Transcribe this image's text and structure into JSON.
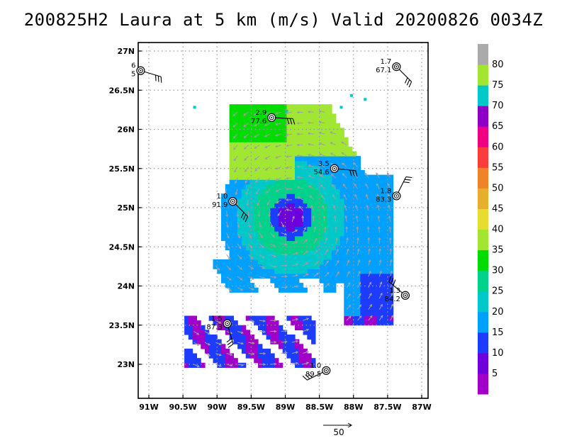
{
  "title": "200825H2 Laura at 5 km (m/s) Valid 20200826 0034Z",
  "chart_data": {
    "type": "heatmap",
    "title": "200825H2 Laura at 5 km (m/s) Valid 20200826 0034Z",
    "xlabel": "",
    "ylabel": "",
    "xlim": [
      -91.2,
      -86.9
    ],
    "ylim": [
      22.6,
      27.15
    ],
    "x_ticks": [
      -91,
      -90.5,
      -90,
      -89.5,
      -89,
      -88.5,
      -88,
      -87.5,
      -87
    ],
    "x_tick_labels": [
      "91W",
      "90.5W",
      "90W",
      "89.5W",
      "89W",
      "88.5W",
      "88W",
      "87.5W",
      "87W"
    ],
    "y_ticks": [
      23,
      23.5,
      24,
      24.5,
      25,
      25.5,
      26,
      26.5,
      27
    ],
    "y_tick_labels": [
      "23N",
      "23.5N",
      "24N",
      "24.5N",
      "25N",
      "25.5N",
      "26N",
      "26.5N",
      "27N"
    ],
    "grid": true,
    "colorbar": {
      "labels": [
        "5",
        "10",
        "15",
        "20",
        "25",
        "30",
        "35",
        "40",
        "45",
        "50",
        "55",
        "60",
        "65",
        "70",
        "75",
        "80"
      ],
      "colors": [
        "#a000c8",
        "#6e00dc",
        "#1e3cff",
        "#00a0ff",
        "#00c8c8",
        "#00d28c",
        "#00dc00",
        "#a0e632",
        "#e6dc32",
        "#e6af2d",
        "#f08228",
        "#fa3c3c",
        "#f00082",
        "#8c00c8",
        "#00c8c8",
        "#a0e632",
        "#aaaaaa"
      ]
    },
    "dropsondes": [
      {
        "lon": -91.12,
        "lat": 26.75,
        "top": "6",
        "bottom": "5"
      },
      {
        "lon": -87.37,
        "lat": 26.8,
        "top": "1.7",
        "bottom": "67.1"
      },
      {
        "lon": -89.2,
        "lat": 26.15,
        "top": "2.9",
        "bottom": "77.6"
      },
      {
        "lon": -88.28,
        "lat": 25.5,
        "top": "3.5",
        "bottom": "54.6"
      },
      {
        "lon": -89.77,
        "lat": 25.08,
        "top": "1.0",
        "bottom": "91.9"
      },
      {
        "lon": -87.37,
        "lat": 25.15,
        "top": "1.8",
        "bottom": "83.3"
      },
      {
        "lon": -87.24,
        "lat": 23.88,
        "top": "1.3",
        "bottom": "84.2"
      },
      {
        "lon": -89.85,
        "lat": 23.52,
        "top": "1.5",
        "bottom": "87.3"
      },
      {
        "lon": -88.4,
        "lat": 22.92,
        "top": "1.0",
        "bottom": "89.5"
      }
    ],
    "reference_vector": {
      "label": "50",
      "units": "m/s"
    }
  }
}
